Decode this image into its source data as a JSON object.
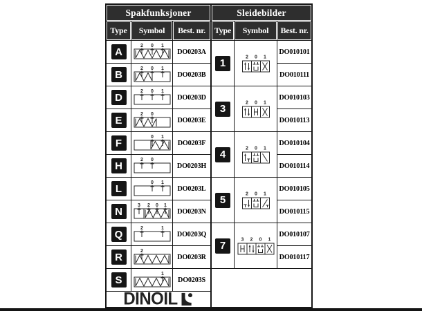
{
  "header": {
    "left_title": "Spakfunksjoner",
    "right_title": "Sleidebilder",
    "col_type": "Type",
    "col_symbol": "Symbol",
    "col_best": "Best. nr."
  },
  "left_rows": [
    {
      "type": "A",
      "best_nr": "DO0203A",
      "symbol": {
        "labels": [
          [
            "2",
            13
          ],
          [
            "0",
            28
          ],
          [
            "1",
            43
          ]
        ],
        "springs": [
          [
            4,
            52
          ]
        ]
      }
    },
    {
      "type": "B",
      "best_nr": "DO0203B",
      "symbol": {
        "labels": [
          [
            "2",
            13
          ],
          [
            "0",
            28
          ],
          [
            "1",
            43
          ]
        ],
        "springs": [
          [
            4,
            28
          ]
        ]
      }
    },
    {
      "type": "D",
      "best_nr": "DO0203D",
      "symbol": {
        "labels": [
          [
            "2",
            13
          ],
          [
            "0",
            28
          ],
          [
            "1",
            43
          ]
        ],
        "springs": []
      }
    },
    {
      "type": "E",
      "best_nr": "DO0203E",
      "symbol": {
        "labels": [
          [
            "2",
            13
          ],
          [
            "0",
            28
          ]
        ],
        "springs": [
          [
            4,
            34
          ]
        ]
      }
    },
    {
      "type": "F",
      "best_nr": "DO0203F",
      "symbol": {
        "labels": [
          [
            "0",
            28
          ],
          [
            "1",
            43
          ]
        ],
        "springs": [
          [
            26,
            52
          ]
        ]
      }
    },
    {
      "type": "H",
      "best_nr": "DO0203H",
      "symbol": {
        "labels": [
          [
            "2",
            13
          ],
          [
            "0",
            28
          ]
        ],
        "springs": []
      }
    },
    {
      "type": "L",
      "best_nr": "DO0203L",
      "symbol": {
        "labels": [
          [
            "0",
            28
          ],
          [
            "1",
            43
          ]
        ],
        "springs": []
      }
    },
    {
      "type": "N",
      "best_nr": "DO0203N",
      "symbol": {
        "labels": [
          [
            "3",
            9
          ],
          [
            "2",
            23
          ],
          [
            "0",
            35
          ],
          [
            "1",
            47
          ]
        ],
        "springs": [
          [
            18,
            52
          ]
        ],
        "boxes": [
          [
            2,
            16
          ],
          [
            16,
            54
          ]
        ]
      }
    },
    {
      "type": "Q",
      "best_nr": "DO0203Q",
      "symbol": {
        "labels": [
          [
            "2",
            13
          ],
          [
            "1",
            43
          ]
        ],
        "springs": []
      }
    },
    {
      "type": "R",
      "best_nr": "DO0203R",
      "symbol": {
        "labels": [
          [
            "2",
            13
          ]
        ],
        "springs": [
          [
            4,
            52
          ]
        ]
      }
    },
    {
      "type": "S",
      "best_nr": "DO0203S",
      "symbol": {
        "labels": [
          [
            "1",
            43
          ]
        ],
        "springs": [
          [
            4,
            52
          ]
        ]
      }
    }
  ],
  "right_rows": [
    {
      "type": "1",
      "best_nr_top": "DO010101",
      "best_nr_bottom": "DO010111",
      "symbol": {
        "labels": [
          "2",
          "0",
          "1"
        ],
        "boxes": [
          "pp",
          "ct",
          "x"
        ]
      }
    },
    {
      "type": "3",
      "best_nr_top": "DO010103",
      "best_nr_bottom": "DO010113",
      "symbol": {
        "labels": [
          "2",
          "0",
          "1"
        ],
        "boxes": [
          "pp",
          "ho",
          "x"
        ]
      }
    },
    {
      "type": "4",
      "best_nr_top": "DO010104",
      "best_nr_bottom": "DO010114",
      "symbol": {
        "labels": [
          "2",
          "0",
          "1"
        ],
        "boxes": [
          "at",
          "ct",
          "d1"
        ]
      }
    },
    {
      "type": "5",
      "best_nr_top": "DO010105",
      "best_nr_bottom": "DO010115",
      "symbol": {
        "labels": [
          "2",
          "0",
          "1"
        ],
        "boxes": [
          "ta",
          "ct",
          "d2"
        ]
      }
    },
    {
      "type": "7",
      "best_nr_top": "DO010107",
      "best_nr_bottom": "DO010117",
      "symbol": {
        "labels": [
          "3",
          "2",
          "0",
          "1"
        ],
        "boxes": [
          "ho",
          "pp",
          "ct",
          "x"
        ]
      }
    }
  ],
  "logo": {
    "text": "DINOIL"
  },
  "colors": {
    "header_bg": "#2e2e2e",
    "table_line": "#161616",
    "badge_bg": "#151515",
    "bottom_bar": "#151515"
  }
}
